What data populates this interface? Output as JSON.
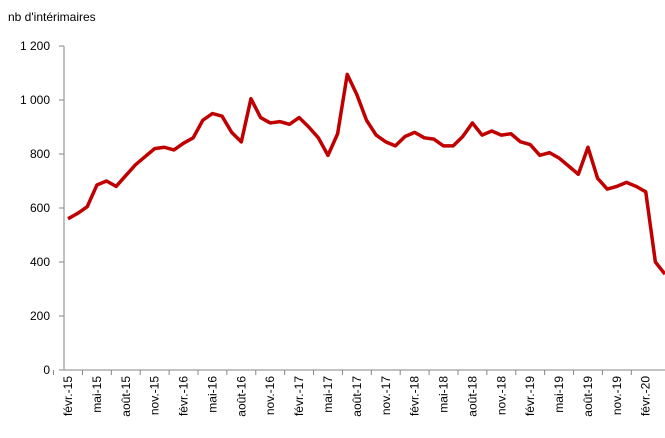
{
  "chart_data": {
    "type": "line",
    "y_axis_label": "nb d'intérimaires",
    "categories": [
      "févr.-15",
      null,
      null,
      "mai-15",
      null,
      null,
      "août-15",
      null,
      null,
      "nov.-15",
      null,
      null,
      "févr.-16",
      null,
      null,
      "mai-16",
      null,
      null,
      "août-16",
      null,
      null,
      "nov.-16",
      null,
      null,
      "févr.-17",
      null,
      null,
      "mai-17",
      null,
      null,
      "août-17",
      null,
      null,
      "nov.-17",
      null,
      null,
      "févr.-18",
      null,
      null,
      "mai-18",
      null,
      null,
      "août-18",
      null,
      null,
      "nov.-18",
      null,
      null,
      "févr.-19",
      null,
      null,
      "mai-19",
      null,
      null,
      "août-19",
      null,
      null,
      "nov.-19",
      null,
      null,
      "févr.-20",
      null,
      null
    ],
    "series": [
      {
        "color": "#c00000",
        "values": [
          560,
          580,
          605,
          685,
          700,
          680,
          720,
          760,
          790,
          820,
          825,
          815,
          840,
          860,
          925,
          950,
          940,
          880,
          845,
          1005,
          935,
          915,
          920,
          910,
          935,
          900,
          860,
          795,
          875,
          1095,
          1020,
          925,
          870,
          845,
          830,
          865,
          880,
          860,
          855,
          830,
          830,
          865,
          915,
          870,
          885,
          870,
          875,
          845,
          835,
          795,
          805,
          785,
          755,
          725,
          825,
          710,
          670,
          680,
          695,
          680,
          660,
          400,
          355
        ]
      }
    ],
    "ylim": [
      0,
      1200
    ],
    "yticks": [
      0,
      200,
      400,
      600,
      800,
      {
        "value": 1000,
        "label": "1 000"
      },
      {
        "value": 1200,
        "label": "1 200"
      }
    ],
    "grid": false
  }
}
